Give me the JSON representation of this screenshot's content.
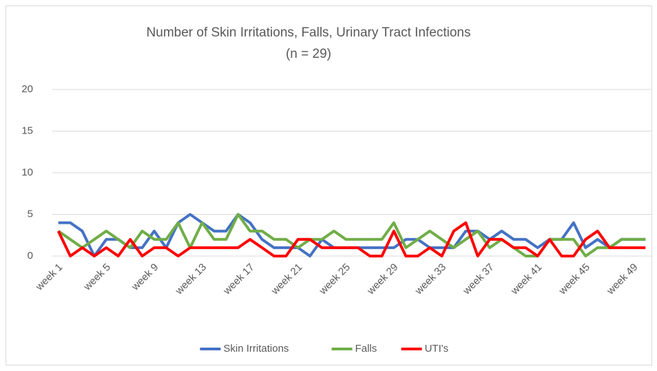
{
  "chart_data": {
    "type": "line",
    "title": "Number of Skin Irritations, Falls, Urinary Tract Infections",
    "subtitle": "(n = 29)",
    "categories": [
      "week 1",
      null,
      null,
      null,
      "week 5",
      null,
      null,
      null,
      "week 9",
      null,
      null,
      null,
      "week 13",
      null,
      null,
      null,
      "week 17",
      null,
      null,
      null,
      "week 21",
      null,
      null,
      null,
      "week 25",
      null,
      null,
      null,
      "week 29",
      null,
      null,
      null,
      "week 33",
      null,
      null,
      null,
      "week 37",
      null,
      null,
      null,
      "week 41",
      null,
      null,
      null,
      "week 45",
      null,
      null,
      null,
      "week 49",
      null
    ],
    "series": [
      {
        "name": "Skin Irritations",
        "color": "#4472c4",
        "values": [
          4,
          4,
          3,
          0,
          2,
          2,
          1,
          1,
          3,
          1,
          4,
          5,
          4,
          3,
          3,
          5,
          4,
          2,
          1,
          1,
          1,
          0,
          2,
          1,
          1,
          1,
          1,
          1,
          1,
          2,
          2,
          1,
          1,
          1,
          3,
          3,
          2,
          3,
          2,
          2,
          1,
          2,
          2,
          4,
          1,
          2,
          1,
          2,
          2,
          2
        ]
      },
      {
        "name": "Falls",
        "color": "#70ad47",
        "values": [
          3,
          2,
          1,
          2,
          3,
          2,
          1,
          3,
          2,
          2,
          4,
          1,
          4,
          2,
          2,
          5,
          3,
          3,
          2,
          2,
          1,
          2,
          2,
          3,
          2,
          2,
          2,
          2,
          4,
          1,
          2,
          3,
          2,
          1,
          2,
          3,
          1,
          2,
          1,
          0,
          0,
          2,
          2,
          2,
          0,
          1,
          1,
          2,
          2,
          2
        ]
      },
      {
        "name": "UTI's",
        "color": "#ff0000",
        "values": [
          3,
          0,
          1,
          0,
          1,
          0,
          2,
          0,
          1,
          1,
          0,
          1,
          1,
          1,
          1,
          1,
          2,
          1,
          0,
          0,
          2,
          2,
          1,
          1,
          1,
          1,
          0,
          0,
          3,
          0,
          0,
          1,
          0,
          3,
          4,
          0,
          2,
          2,
          1,
          1,
          0,
          2,
          0,
          0,
          2,
          3,
          1,
          1,
          1,
          1
        ]
      }
    ],
    "ylim": [
      0,
      20
    ],
    "yticks": [
      0,
      5,
      10,
      15,
      20
    ],
    "grid": true,
    "legend": "bottom"
  }
}
